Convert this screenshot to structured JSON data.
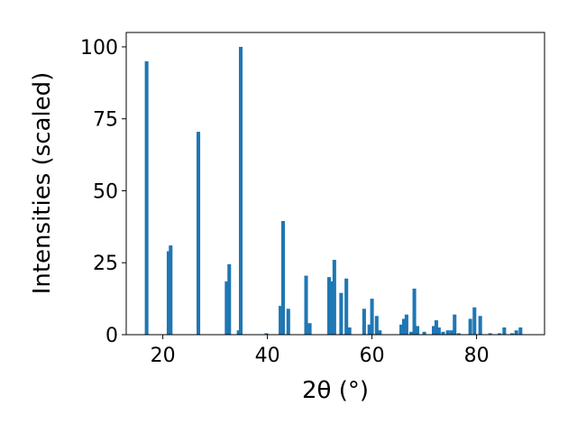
{
  "chart_data": {
    "type": "bar",
    "xlabel": "2θ (°)",
    "ylabel": "Intensities (scaled)",
    "xlim": [
      13,
      93
    ],
    "ylim": [
      0,
      105
    ],
    "xticks": [
      20,
      40,
      60,
      80
    ],
    "yticks": [
      0,
      25,
      50,
      75,
      100
    ],
    "grid": false,
    "bar_color": "#1f77b4",
    "bar_width": 0.7,
    "x": [
      16.9,
      21.1,
      21.5,
      26.8,
      32.2,
      32.7,
      34.5,
      34.9,
      39.8,
      42.5,
      43.0,
      44.0,
      47.4,
      48.1,
      51.8,
      52.3,
      52.8,
      54.1,
      55.1,
      55.7,
      58.5,
      59.5,
      60.0,
      60.9,
      61.5,
      65.6,
      66.1,
      66.6,
      67.5,
      68.1,
      68.7,
      70.0,
      71.8,
      72.3,
      72.8,
      73.6,
      74.5,
      75.2,
      75.8,
      76.6,
      78.8,
      79.6,
      80.7,
      82.6,
      84.4,
      85.3,
      86.8,
      87.6,
      88.4
    ],
    "values": [
      95,
      29,
      31,
      70.5,
      18.5,
      24.5,
      1.5,
      100,
      0.5,
      10,
      39.5,
      9,
      20.5,
      4,
      20,
      18.5,
      26,
      14.5,
      19.5,
      2.5,
      9,
      3.5,
      12.5,
      6.5,
      1.5,
      3.5,
      5.5,
      7,
      1,
      16,
      3,
      1,
      3,
      5,
      2.5,
      1,
      1.5,
      1.5,
      7,
      0.5,
      5.5,
      9.5,
      6.5,
      0.5,
      0.5,
      2.5,
      0.5,
      1.5,
      2.5
    ]
  }
}
